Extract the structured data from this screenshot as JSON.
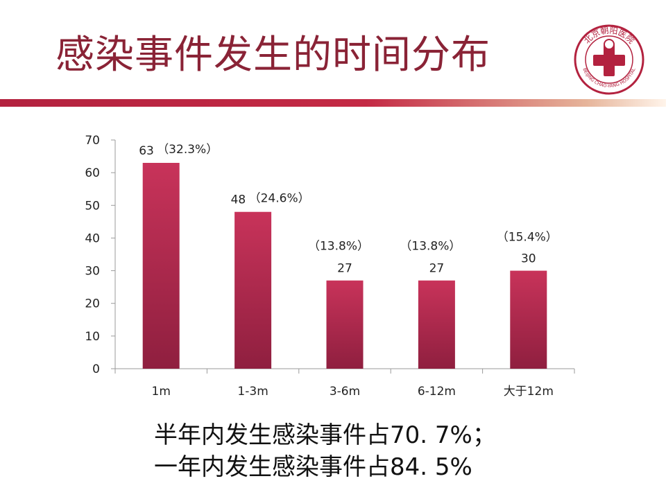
{
  "slide": {
    "title": "感染事件发生的时间分布",
    "logo": {
      "icon": "hospital-logo-icon",
      "name_cn": "北京朝阳医院",
      "name_en": "BEIJING CHAO-YANG HOSPITAL",
      "color": "#b3223f"
    },
    "summary": {
      "line1": "半年内发生感染事件占70. 7%；",
      "line2": "一年内发生感染事件占84. 5%"
    }
  },
  "chart_data": {
    "type": "bar",
    "categories": [
      "1m",
      "1-3m",
      "3-6m",
      "6-12m",
      "大于12m"
    ],
    "values": [
      63,
      48,
      27,
      27,
      30
    ],
    "percent_labels": [
      "（32.3%）",
      "（24.6%）",
      "（13.8%）",
      "（13.8%）",
      "（15.4%）"
    ],
    "title": "",
    "xlabel": "",
    "ylabel": "",
    "ylim": [
      0,
      70
    ],
    "yticks": [
      0,
      10,
      20,
      30,
      40,
      50,
      60,
      70
    ],
    "grid": false,
    "legend": "none",
    "bar_color_top": "#c8335a",
    "bar_color_bottom": "#8f1f3f"
  }
}
